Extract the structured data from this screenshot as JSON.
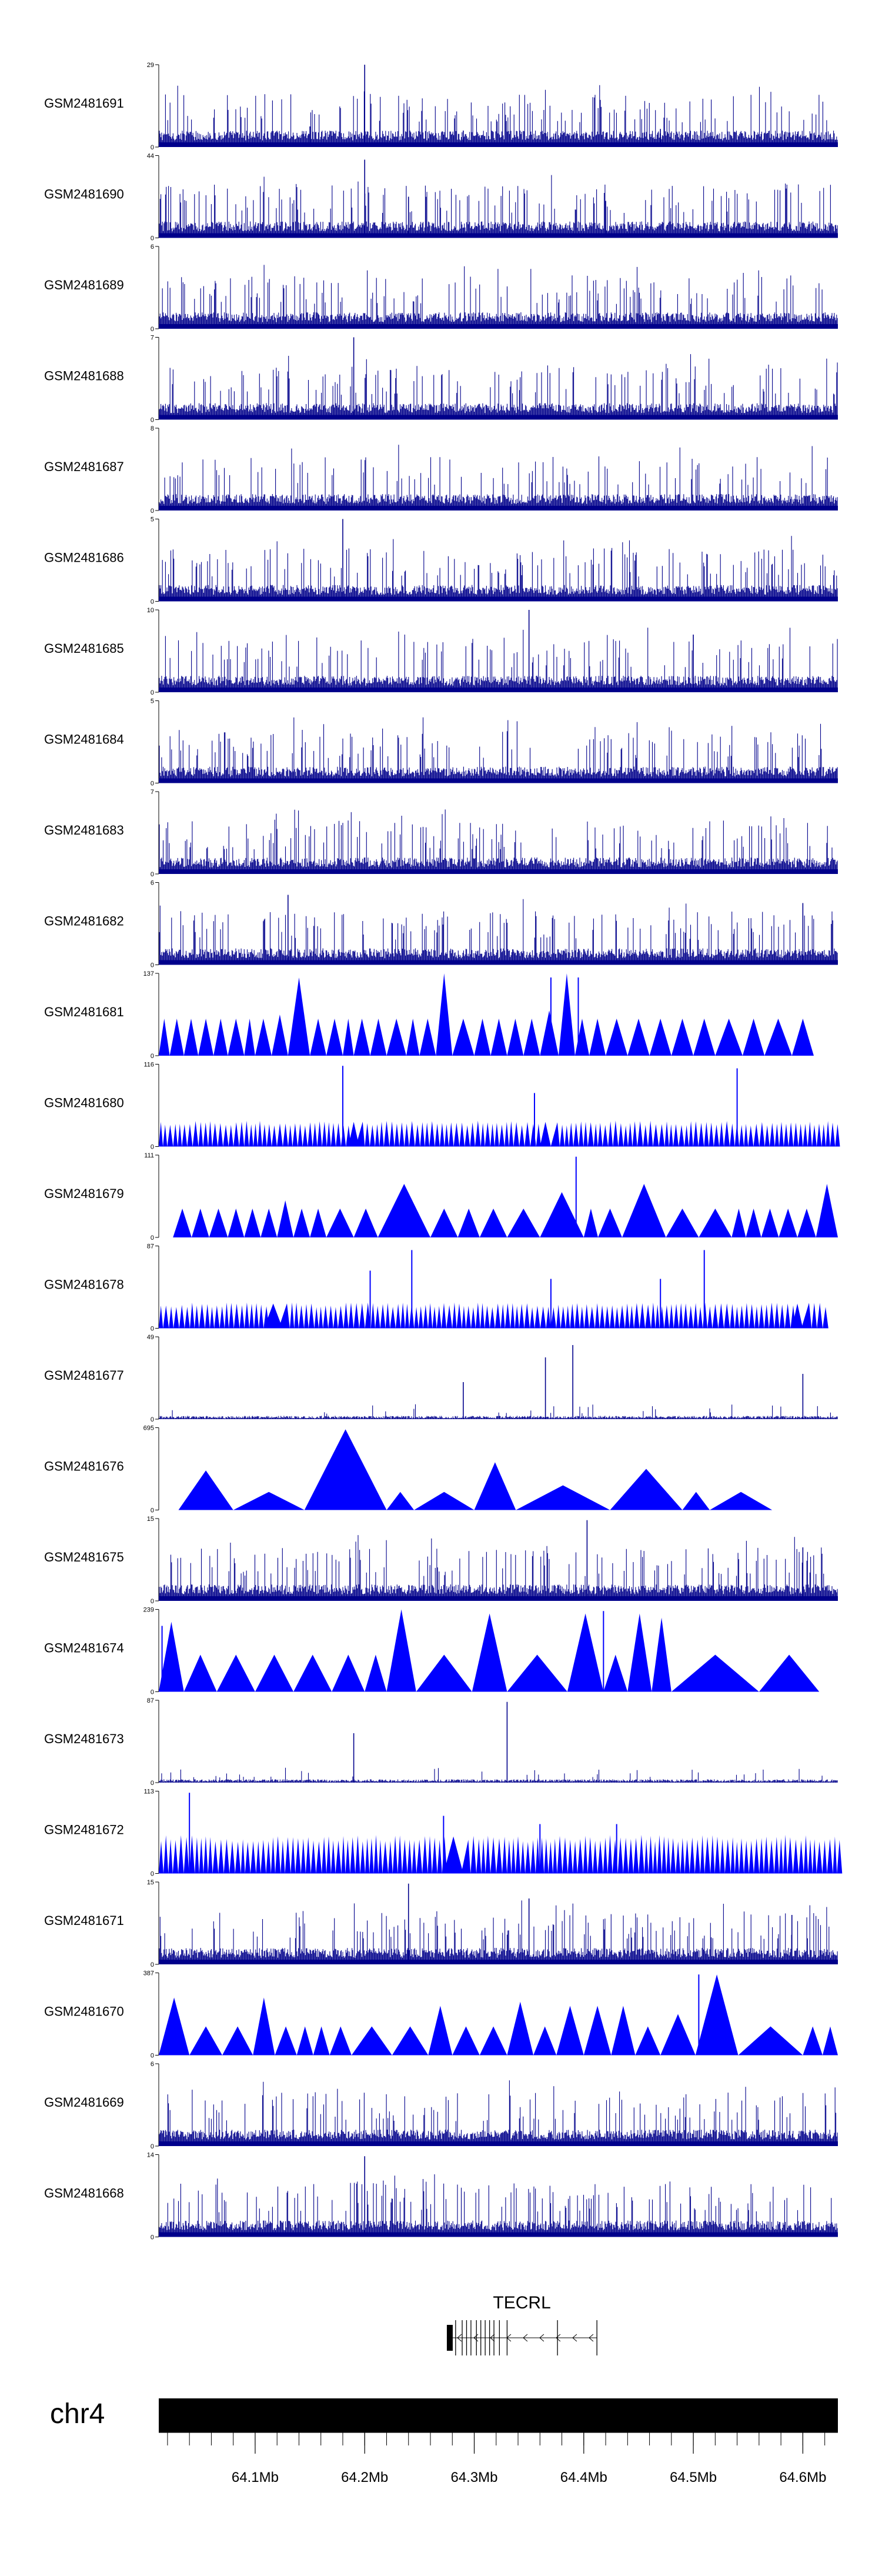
{
  "chart_data": {
    "type": "genome-track-plot",
    "chromosome": "chr4",
    "region_start_mb": 64.012,
    "region_end_mb": 64.632,
    "colors": {
      "bar": "#00008b",
      "peak": "#0000ff",
      "axis": "#000000",
      "ideogram": "#000000"
    },
    "tracks": [
      {
        "name": "GSM2481691",
        "ymax": 29,
        "ymin": 0,
        "style": "bars",
        "peaks": [
          [
            64.15,
            0.25
          ],
          [
            64.2,
            1.0
          ],
          [
            64.29,
            0.2
          ],
          [
            64.47,
            0.22
          ]
        ]
      },
      {
        "name": "GSM2481690",
        "ymax": 44,
        "ymin": 0,
        "style": "bars",
        "peaks": [
          [
            64.2,
            0.95
          ],
          [
            64.24,
            0.5
          ],
          [
            64.42,
            0.45
          ]
        ]
      },
      {
        "name": "GSM2481689",
        "ymax": 6,
        "ymin": 0,
        "style": "bars",
        "peaks": []
      },
      {
        "name": "GSM2481688",
        "ymax": 7,
        "ymin": 0,
        "style": "bars",
        "peaks": [
          [
            64.19,
            1.0
          ]
        ]
      },
      {
        "name": "GSM2481687",
        "ymax": 8,
        "ymin": 0,
        "style": "bars",
        "peaks": []
      },
      {
        "name": "GSM2481686",
        "ymax": 5,
        "ymin": 0,
        "style": "bars",
        "peaks": [
          [
            64.18,
            1.0
          ]
        ]
      },
      {
        "name": "GSM2481685",
        "ymax": 10,
        "ymin": 0,
        "style": "bars",
        "peaks": [
          [
            64.35,
            1.0
          ],
          [
            64.5,
            0.7
          ]
        ]
      },
      {
        "name": "GSM2481684",
        "ymax": 5,
        "ymin": 0,
        "style": "bars",
        "peaks": []
      },
      {
        "name": "GSM2481683",
        "ymax": 7,
        "ymin": 0,
        "style": "bars",
        "peaks": []
      },
      {
        "name": "GSM2481682",
        "ymax": 6,
        "ymin": 0,
        "style": "bars",
        "peaks": [
          [
            64.13,
            0.85
          ],
          [
            64.6,
            0.75
          ]
        ]
      },
      {
        "name": "GSM2481681",
        "ymax": 137,
        "ymin": 0,
        "style": "triangles",
        "triangles": [
          [
            64.012,
            64.022,
            0.45
          ],
          [
            64.022,
            64.035,
            0.45
          ],
          [
            64.035,
            64.048,
            0.45
          ],
          [
            64.048,
            64.062,
            0.45
          ],
          [
            64.062,
            64.075,
            0.45
          ],
          [
            64.075,
            64.09,
            0.45
          ],
          [
            64.09,
            64.1,
            0.45
          ],
          [
            64.1,
            64.115,
            0.45
          ],
          [
            64.115,
            64.13,
            0.5
          ],
          [
            64.13,
            64.15,
            0.95
          ],
          [
            64.15,
            64.165,
            0.45
          ],
          [
            64.165,
            64.18,
            0.45
          ],
          [
            64.18,
            64.19,
            0.45
          ],
          [
            64.19,
            64.205,
            0.45
          ],
          [
            64.205,
            64.22,
            0.45
          ],
          [
            64.22,
            64.238,
            0.45
          ],
          [
            64.238,
            64.25,
            0.45
          ],
          [
            64.25,
            64.265,
            0.45
          ],
          [
            64.265,
            64.28,
            1.0
          ],
          [
            64.28,
            64.3,
            0.45
          ],
          [
            64.3,
            64.315,
            0.45
          ],
          [
            64.315,
            64.33,
            0.45
          ],
          [
            64.33,
            64.345,
            0.45
          ],
          [
            64.345,
            64.36,
            0.45
          ],
          [
            64.36,
            64.377,
            0.55
          ],
          [
            64.377,
            64.392,
            1.0
          ],
          [
            64.392,
            64.405,
            0.45
          ],
          [
            64.405,
            64.42,
            0.45
          ],
          [
            64.42,
            64.44,
            0.45
          ],
          [
            64.44,
            64.46,
            0.45
          ],
          [
            64.46,
            64.48,
            0.45
          ],
          [
            64.48,
            64.5,
            0.45
          ],
          [
            64.5,
            64.52,
            0.45
          ],
          [
            64.52,
            64.545,
            0.45
          ],
          [
            64.545,
            64.565,
            0.45
          ],
          [
            64.565,
            64.59,
            0.45
          ],
          [
            64.59,
            64.61,
            0.45
          ]
        ],
        "spikes": [
          [
            64.37,
            0.95
          ],
          [
            64.395,
            0.95
          ]
        ]
      },
      {
        "name": "GSM2481680",
        "ymax": 116,
        "ymin": 0,
        "style": "comb",
        "comb_height": 0.3,
        "gaps": [
          [
            64.185,
            64.195
          ],
          [
            64.36,
            64.37
          ]
        ],
        "end": 64.632,
        "spikes": [
          [
            64.18,
            0.98
          ],
          [
            64.355,
            0.65
          ],
          [
            64.54,
            0.95
          ]
        ]
      },
      {
        "name": "GSM2481679",
        "ymax": 111,
        "ymin": 0,
        "style": "triangles",
        "triangles": [
          [
            64.025,
            64.042,
            0.35
          ],
          [
            64.042,
            64.058,
            0.35
          ],
          [
            64.058,
            64.075,
            0.35
          ],
          [
            64.075,
            64.09,
            0.35
          ],
          [
            64.09,
            64.105,
            0.35
          ],
          [
            64.105,
            64.12,
            0.35
          ],
          [
            64.12,
            64.135,
            0.45
          ],
          [
            64.135,
            64.15,
            0.35
          ],
          [
            64.15,
            64.165,
            0.35
          ],
          [
            64.165,
            64.19,
            0.35
          ],
          [
            64.19,
            64.212,
            0.35
          ],
          [
            64.212,
            64.26,
            0.65
          ],
          [
            64.26,
            64.285,
            0.35
          ],
          [
            64.285,
            64.305,
            0.35
          ],
          [
            64.305,
            64.33,
            0.35
          ],
          [
            64.33,
            64.36,
            0.35
          ],
          [
            64.36,
            64.4,
            0.55
          ],
          [
            64.4,
            64.413,
            0.35
          ],
          [
            64.413,
            64.435,
            0.35
          ],
          [
            64.435,
            64.475,
            0.65
          ],
          [
            64.475,
            64.505,
            0.35
          ],
          [
            64.505,
            64.535,
            0.35
          ],
          [
            64.535,
            64.548,
            0.35
          ],
          [
            64.548,
            64.562,
            0.35
          ],
          [
            64.562,
            64.578,
            0.35
          ],
          [
            64.578,
            64.595,
            0.35
          ],
          [
            64.595,
            64.612,
            0.35
          ],
          [
            64.612,
            64.632,
            0.65
          ]
        ],
        "spikes": [
          [
            64.393,
            0.98
          ],
          [
            64.45,
            0.3
          ]
        ]
      },
      {
        "name": "GSM2481678",
        "ymax": 87,
        "ymin": 0,
        "style": "comb",
        "comb_height": 0.3,
        "gaps": [
          [
            64.108,
            64.125
          ],
          [
            64.59,
            64.6
          ]
        ],
        "end": 64.62,
        "spikes": [
          [
            64.243,
            0.95
          ],
          [
            64.205,
            0.7
          ],
          [
            64.37,
            0.6
          ],
          [
            64.51,
            0.95
          ],
          [
            64.47,
            0.6
          ]
        ]
      },
      {
        "name": "GSM2481677",
        "ymax": 49,
        "ymin": 0,
        "style": "bars",
        "sparse": true,
        "peaks": [
          [
            64.39,
            0.9
          ],
          [
            64.365,
            0.75
          ],
          [
            64.29,
            0.45
          ],
          [
            64.6,
            0.55
          ]
        ]
      },
      {
        "name": "GSM2481676",
        "ymax": 695,
        "ymin": 0,
        "style": "triangles",
        "triangles": [
          [
            64.03,
            64.08,
            0.48
          ],
          [
            64.08,
            64.145,
            0.22
          ],
          [
            64.145,
            64.22,
            0.98
          ],
          [
            64.22,
            64.245,
            0.22
          ],
          [
            64.245,
            64.3,
            0.22
          ],
          [
            64.3,
            64.338,
            0.58
          ],
          [
            64.338,
            64.424,
            0.3
          ],
          [
            64.424,
            64.49,
            0.5
          ],
          [
            64.49,
            64.515,
            0.22
          ],
          [
            64.515,
            64.572,
            0.22
          ]
        ],
        "spikes": []
      },
      {
        "name": "GSM2481675",
        "ymax": 15,
        "ymin": 0,
        "style": "bars",
        "peaks": [
          [
            64.403,
            0.98
          ],
          [
            64.6,
            0.65
          ]
        ]
      },
      {
        "name": "GSM2481674",
        "ymax": 239,
        "ymin": 0,
        "style": "triangles",
        "triangles": [
          [
            64.012,
            64.035,
            0.85
          ],
          [
            64.035,
            64.065,
            0.45
          ],
          [
            64.065,
            64.1,
            0.45
          ],
          [
            64.1,
            64.135,
            0.45
          ],
          [
            64.135,
            64.17,
            0.45
          ],
          [
            64.17,
            64.2,
            0.45
          ],
          [
            64.2,
            64.22,
            0.45
          ],
          [
            64.22,
            64.247,
            1.0
          ],
          [
            64.247,
            64.298,
            0.45
          ],
          [
            64.298,
            64.33,
            0.95
          ],
          [
            64.33,
            64.385,
            0.45
          ],
          [
            64.385,
            64.418,
            0.95
          ],
          [
            64.418,
            64.44,
            0.45
          ],
          [
            64.44,
            64.462,
            0.95
          ],
          [
            64.462,
            64.48,
            0.9
          ],
          [
            64.48,
            64.56,
            0.45
          ],
          [
            64.56,
            64.615,
            0.45
          ]
        ],
        "spikes": [
          [
            64.015,
            0.8
          ],
          [
            64.418,
            0.98
          ]
        ]
      },
      {
        "name": "GSM2481673",
        "ymax": 87,
        "ymin": 0,
        "style": "bars",
        "sparse": true,
        "peaks": [
          [
            64.19,
            0.6
          ],
          [
            64.33,
            0.98
          ]
        ]
      },
      {
        "name": "GSM2481672",
        "ymax": 113,
        "ymin": 0,
        "style": "comb",
        "comb_height": 0.45,
        "gaps": [
          [
            64.272,
            64.29
          ]
        ],
        "end": 64.632,
        "spikes": [
          [
            64.04,
            0.98
          ],
          [
            64.272,
            0.7
          ],
          [
            64.36,
            0.6
          ],
          [
            64.43,
            0.6
          ]
        ]
      },
      {
        "name": "GSM2481671",
        "ymax": 15,
        "ymin": 0,
        "style": "bars",
        "peaks": [
          [
            64.24,
            0.98
          ],
          [
            64.35,
            0.8
          ],
          [
            64.59,
            0.6
          ]
        ]
      },
      {
        "name": "GSM2481670",
        "ymax": 387,
        "ymin": 0,
        "style": "triangles",
        "triangles": [
          [
            64.012,
            64.04,
            0.7
          ],
          [
            64.04,
            64.07,
            0.35
          ],
          [
            64.07,
            64.098,
            0.35
          ],
          [
            64.098,
            64.118,
            0.7
          ],
          [
            64.118,
            64.138,
            0.35
          ],
          [
            64.138,
            64.153,
            0.35
          ],
          [
            64.153,
            64.168,
            0.35
          ],
          [
            64.168,
            64.188,
            0.35
          ],
          [
            64.188,
            64.225,
            0.35
          ],
          [
            64.225,
            64.258,
            0.35
          ],
          [
            64.258,
            64.28,
            0.6
          ],
          [
            64.28,
            64.305,
            0.35
          ],
          [
            64.305,
            64.33,
            0.35
          ],
          [
            64.33,
            64.354,
            0.65
          ],
          [
            64.354,
            64.375,
            0.35
          ],
          [
            64.375,
            64.4,
            0.6
          ],
          [
            64.4,
            64.425,
            0.6
          ],
          [
            64.425,
            64.447,
            0.6
          ],
          [
            64.447,
            64.47,
            0.35
          ],
          [
            64.47,
            64.502,
            0.5
          ],
          [
            64.502,
            64.541,
            0.98
          ],
          [
            64.541,
            64.6,
            0.35
          ],
          [
            64.6,
            64.618,
            0.35
          ],
          [
            64.618,
            64.632,
            0.35
          ]
        ],
        "spikes": [
          [
            64.505,
            0.98
          ]
        ]
      },
      {
        "name": "GSM2481669",
        "ymax": 6,
        "ymin": 0,
        "style": "bars",
        "peaks": []
      },
      {
        "name": "GSM2481668",
        "ymax": 14,
        "ymin": 0,
        "style": "bars",
        "peaks": [
          [
            64.2,
            0.98
          ]
        ]
      }
    ],
    "gene": {
      "name": "TECRL",
      "strand": "-",
      "start_mb": 64.275,
      "end_mb": 64.412,
      "exons_mb": [
        64.275,
        64.283,
        64.289,
        64.293,
        64.297,
        64.302,
        64.306,
        64.31,
        64.314,
        64.318,
        64.323,
        64.33,
        64.376,
        64.412
      ]
    },
    "axis": {
      "ticks": [
        {
          "pos_mb": 64.1,
          "label": "64.1Mb"
        },
        {
          "pos_mb": 64.2,
          "label": "64.2Mb"
        },
        {
          "pos_mb": 64.3,
          "label": "64.3Mb"
        },
        {
          "pos_mb": 64.4,
          "label": "64.4Mb"
        },
        {
          "pos_mb": 64.5,
          "label": "64.5Mb"
        },
        {
          "pos_mb": 64.6,
          "label": "64.6Mb"
        }
      ],
      "minor_tick_step_mb": 0.02
    }
  }
}
